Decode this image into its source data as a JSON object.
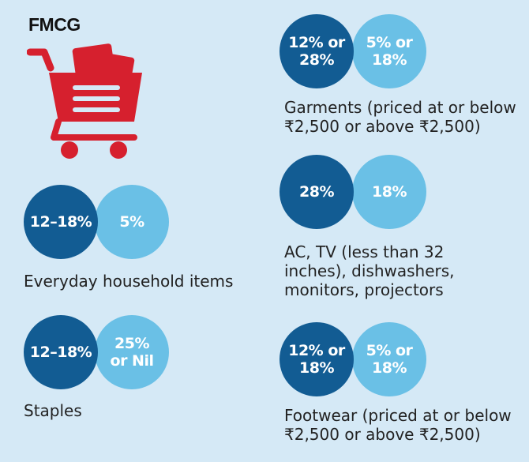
{
  "header": {
    "title": "FMCG",
    "icon": "shopping-cart-icon"
  },
  "colors": {
    "background": "#d5e9f6",
    "old_rate": "#125c93",
    "new_rate": "#6ac0e6",
    "cart": "#d6202e"
  },
  "items": {
    "household": {
      "label": "Everyday household items",
      "old_rate": "12–18%",
      "new_rate": "5%"
    },
    "staples": {
      "label": "Staples",
      "old_rate": "12–18%",
      "new_rate": "25%\nor Nil"
    },
    "garments": {
      "label": "Garments (priced at or below\n₹2,500 or above ₹2,500)",
      "old_rate": "12% or\n28%",
      "new_rate": "5% or\n18%"
    },
    "electronics": {
      "label": "AC, TV (less than 32\ninches), dishwashers,\nmonitors, projectors",
      "old_rate": "28%",
      "new_rate": "18%"
    },
    "footwear": {
      "label": "Footwear (priced at or below\n₹2,500 or above ₹2,500)",
      "old_rate": "12% or\n18%",
      "new_rate": "5% or\n18%"
    }
  }
}
